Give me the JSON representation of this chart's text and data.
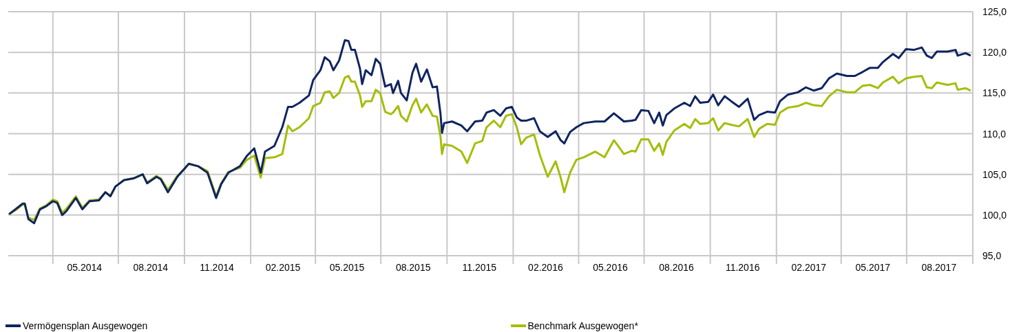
{
  "chart_data": {
    "type": "line",
    "x": [
      "2014-01-30",
      "2014-02-08",
      "2014-02-18",
      "2014-02-21",
      "2014-02-26",
      "2014-03-06",
      "2014-03-14",
      "2014-03-23",
      "2014-04-01",
      "2014-04-07",
      "2014-04-14",
      "2014-04-20",
      "2014-05-03",
      "2014-05-12",
      "2014-05-22",
      "2014-06-04",
      "2014-06-13",
      "2014-06-20",
      "2014-06-27",
      "2014-07-09",
      "2014-07-22",
      "2014-08-04",
      "2014-08-10",
      "2014-08-23",
      "2014-08-29",
      "2014-09-08",
      "2014-09-21",
      "2014-10-01",
      "2014-10-07",
      "2014-10-20",
      "2014-11-02",
      "2014-11-14",
      "2014-11-21",
      "2014-12-01",
      "2014-12-17",
      "2014-12-27",
      "2015-01-06",
      "2015-01-15",
      "2015-01-21",
      "2015-02-03",
      "2015-02-14",
      "2015-02-22",
      "2015-02-28",
      "2015-03-10",
      "2015-03-23",
      "2015-03-29",
      "2015-04-08",
      "2015-04-14",
      "2015-04-21",
      "2015-04-26",
      "2015-05-04",
      "2015-05-12",
      "2015-05-17",
      "2015-05-21",
      "2015-05-26",
      "2015-06-02",
      "2015-06-05",
      "2015-06-10",
      "2015-06-18",
      "2015-06-24",
      "2015-06-30",
      "2015-07-07",
      "2015-07-15",
      "2015-07-18",
      "2015-07-25",
      "2015-07-29",
      "2015-08-06",
      "2015-08-14",
      "2015-08-19",
      "2015-08-26",
      "2015-09-03",
      "2015-09-11",
      "2015-09-17",
      "2015-09-22",
      "2015-09-24",
      "2015-09-27",
      "2015-10-08",
      "2015-10-21",
      "2015-10-29",
      "2015-11-09",
      "2015-11-19",
      "2015-11-25",
      "2015-12-05",
      "2015-12-14",
      "2015-12-22",
      "2015-12-30",
      "2016-01-06",
      "2016-01-12",
      "2016-01-19",
      "2016-01-30",
      "2016-02-07",
      "2016-02-18",
      "2016-02-29",
      "2016-03-07",
      "2016-03-12",
      "2016-03-20",
      "2016-03-29",
      "2016-04-08",
      "2016-04-24",
      "2016-05-07",
      "2016-05-20",
      "2016-06-03",
      "2016-06-14",
      "2016-06-19",
      "2016-06-27",
      "2016-07-07",
      "2016-07-15",
      "2016-07-22",
      "2016-07-27",
      "2016-08-01",
      "2016-08-12",
      "2016-08-26",
      "2016-09-03",
      "2016-09-10",
      "2016-09-17",
      "2016-09-28",
      "2016-10-05",
      "2016-10-12",
      "2016-10-21",
      "2016-10-30",
      "2016-11-10",
      "2016-11-22",
      "2016-12-01",
      "2016-12-08",
      "2016-12-19",
      "2016-12-30",
      "2017-01-06",
      "2017-01-17",
      "2017-01-31",
      "2017-02-11",
      "2017-02-22",
      "2017-03-05",
      "2017-03-15",
      "2017-03-26",
      "2017-04-09",
      "2017-04-20",
      "2017-05-01",
      "2017-05-11",
      "2017-05-22",
      "2017-05-29",
      "2017-06-12",
      "2017-06-20",
      "2017-06-30",
      "2017-07-11",
      "2017-07-22",
      "2017-07-29",
      "2017-08-05",
      "2017-08-12",
      "2017-08-27",
      "2017-09-07",
      "2017-09-10",
      "2017-09-21",
      "2017-09-28"
    ],
    "series": [
      {
        "name": "Vermögensplan Ausgewogen",
        "color": "#0f2461",
        "values": [
          100.1,
          100.7,
          101.4,
          101.4,
          99.5,
          99.0,
          100.7,
          101.1,
          101.7,
          101.5,
          100.0,
          100.5,
          102.1,
          100.7,
          101.7,
          101.8,
          102.8,
          102.3,
          103.5,
          104.3,
          104.5,
          105.0,
          103.9,
          104.7,
          104.4,
          102.8,
          104.7,
          105.7,
          106.3,
          106.0,
          105.2,
          102.1,
          103.8,
          105.2,
          106.0,
          107.3,
          108.2,
          105.2,
          107.8,
          108.5,
          110.8,
          113.3,
          113.3,
          113.8,
          114.7,
          116.6,
          117.8,
          119.4,
          118.9,
          117.8,
          119.0,
          121.5,
          121.4,
          120.3,
          120.3,
          118.0,
          116.1,
          117.8,
          117.2,
          119.2,
          118.6,
          115.8,
          116.1,
          115.0,
          116.5,
          115.0,
          114.1,
          117.5,
          118.6,
          116.4,
          117.9,
          115.7,
          115.8,
          112.4,
          110.1,
          111.3,
          111.5,
          111.0,
          110.3,
          111.5,
          111.6,
          112.6,
          112.9,
          112.2,
          113.1,
          113.3,
          112.0,
          111.6,
          111.6,
          111.9,
          110.3,
          109.6,
          110.3,
          109.2,
          108.8,
          110.2,
          110.8,
          111.3,
          111.5,
          111.5,
          112.5,
          111.5,
          111.6,
          111.7,
          112.9,
          112.8,
          111.3,
          112.6,
          111.0,
          112.3,
          113.1,
          113.8,
          113.4,
          114.6,
          113.8,
          113.9,
          114.8,
          113.5,
          114.6,
          114.0,
          113.3,
          114.3,
          111.7,
          112.3,
          112.7,
          112.6,
          114.0,
          114.8,
          115.1,
          115.7,
          115.3,
          115.6,
          116.8,
          117.4,
          117.1,
          117.1,
          117.6,
          118.1,
          118.1,
          118.8,
          119.8,
          119.3,
          120.4,
          120.3,
          120.6,
          119.6,
          119.3,
          120.1,
          120.1,
          120.3,
          119.6,
          119.9,
          119.6
        ]
      },
      {
        "name": "Benchmark Ausgewogen*",
        "color": "#a5bd0a",
        "values": [
          100.1,
          100.6,
          101.3,
          101.2,
          99.7,
          99.4,
          100.8,
          101.2,
          101.9,
          101.7,
          100.3,
          100.8,
          102.3,
          100.9,
          101.8,
          101.9,
          102.8,
          102.4,
          103.5,
          104.3,
          104.5,
          105.0,
          104.0,
          104.8,
          104.5,
          103.1,
          104.8,
          105.7,
          106.3,
          106.0,
          105.4,
          102.3,
          103.9,
          105.3,
          105.8,
          106.8,
          107.3,
          104.6,
          107.0,
          107.1,
          107.5,
          111.0,
          110.3,
          110.8,
          111.9,
          113.4,
          113.8,
          115.1,
          115.2,
          114.4,
          115.0,
          116.9,
          117.1,
          116.4,
          116.4,
          114.7,
          113.3,
          114.0,
          114.0,
          115.4,
          115.0,
          112.7,
          112.4,
          112.6,
          113.4,
          112.2,
          111.5,
          113.5,
          114.3,
          112.6,
          113.6,
          112.2,
          112.1,
          109.6,
          107.5,
          108.7,
          108.5,
          107.8,
          106.4,
          108.8,
          109.1,
          110.8,
          111.6,
          110.8,
          112.2,
          112.4,
          110.8,
          108.7,
          109.5,
          109.9,
          107.4,
          104.7,
          106.6,
          104.6,
          102.8,
          105.2,
          106.8,
          107.1,
          107.8,
          107.1,
          109.2,
          107.5,
          107.9,
          107.8,
          109.3,
          109.3,
          107.9,
          108.8,
          107.4,
          109.0,
          110.4,
          111.2,
          110.7,
          111.8,
          111.2,
          111.3,
          111.9,
          110.4,
          111.3,
          111.1,
          110.9,
          111.8,
          109.6,
          110.6,
          111.2,
          111.1,
          112.6,
          113.2,
          113.4,
          113.8,
          113.5,
          113.4,
          114.6,
          115.4,
          115.1,
          115.1,
          115.9,
          116.0,
          115.6,
          116.3,
          117.0,
          116.2,
          116.8,
          117.0,
          117.1,
          115.7,
          115.6,
          116.3,
          116.0,
          116.2,
          115.4,
          115.6,
          115.3
        ]
      }
    ],
    "xlim": [
      "2014-01-29",
      "2017-10-01"
    ],
    "xticks": [
      {
        "value": "2014-04-01",
        "label": null
      },
      {
        "value": "2014-05-15",
        "label": "05.2014"
      },
      {
        "value": "2014-07-01",
        "label": null
      },
      {
        "value": "2014-08-15",
        "label": "08.2014"
      },
      {
        "value": "2014-10-01",
        "label": null
      },
      {
        "value": "2014-11-15",
        "label": "11.2014"
      },
      {
        "value": "2015-01-01",
        "label": null
      },
      {
        "value": "2015-02-15",
        "label": "02.2015"
      },
      {
        "value": "2015-04-01",
        "label": null
      },
      {
        "value": "2015-05-15",
        "label": "05.2015"
      },
      {
        "value": "2015-07-01",
        "label": null
      },
      {
        "value": "2015-08-15",
        "label": "08.2015"
      },
      {
        "value": "2015-10-01",
        "label": null
      },
      {
        "value": "2015-11-15",
        "label": "11.2015"
      },
      {
        "value": "2016-01-01",
        "label": null
      },
      {
        "value": "2016-02-15",
        "label": "02.2016"
      },
      {
        "value": "2016-04-01",
        "label": null
      },
      {
        "value": "2016-05-15",
        "label": "05.2016"
      },
      {
        "value": "2016-07-01",
        "label": null
      },
      {
        "value": "2016-08-15",
        "label": "08.2016"
      },
      {
        "value": "2016-10-01",
        "label": null
      },
      {
        "value": "2016-11-15",
        "label": "11.2016"
      },
      {
        "value": "2017-01-01",
        "label": null
      },
      {
        "value": "2017-02-15",
        "label": "02.2017"
      },
      {
        "value": "2017-04-01",
        "label": null
      },
      {
        "value": "2017-05-15",
        "label": "05.2017"
      },
      {
        "value": "2017-07-01",
        "label": null
      },
      {
        "value": "2017-08-15",
        "label": "08.2017"
      },
      {
        "value": "2017-10-01",
        "label": null
      }
    ],
    "ylim": [
      95,
      125
    ],
    "yticks": [
      {
        "value": 95,
        "label": "95,0"
      },
      {
        "value": 100,
        "label": "100,0"
      },
      {
        "value": 105,
        "label": "105,0"
      },
      {
        "value": 110,
        "label": "110,0"
      },
      {
        "value": 115,
        "label": "115,0"
      },
      {
        "value": 120,
        "label": "120,0"
      },
      {
        "value": 125,
        "label": "125,0"
      }
    ],
    "grid": true,
    "legend": "bottom",
    "marker": "none",
    "line_style": "solid"
  }
}
